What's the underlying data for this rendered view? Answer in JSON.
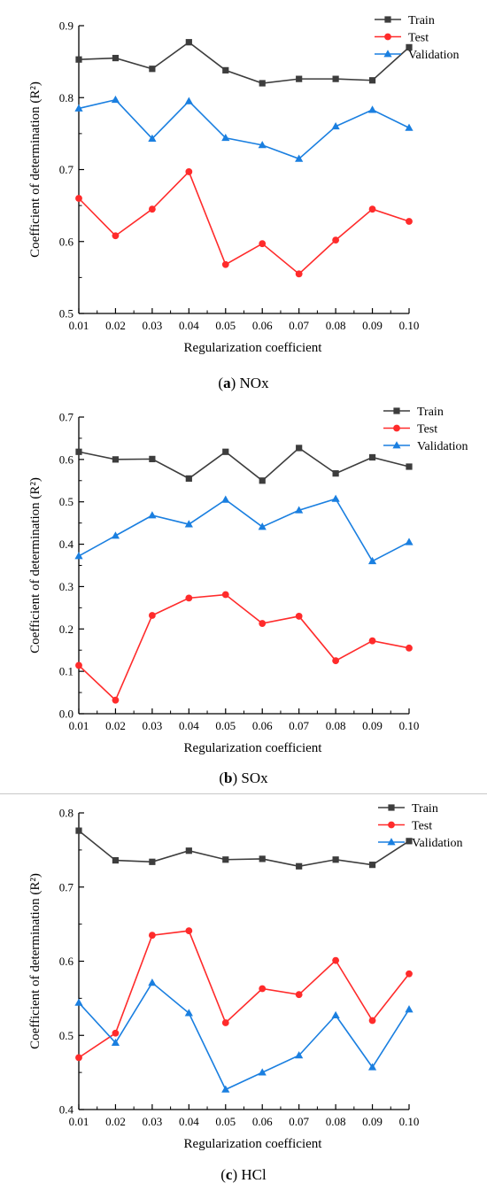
{
  "colors": {
    "Train": "#3d3d3d",
    "Test": "#ff2b2b",
    "Validation": "#1a7fe0"
  },
  "markers": {
    "Train": "square",
    "Test": "circle",
    "Validation": "triangle"
  },
  "chart_data": [
    {
      "type": "line",
      "caption_letter": "a",
      "caption_text": "NOx",
      "xlabel": "Regularization coefficient",
      "ylabel": "Coefficient of determination (R²)",
      "x": [
        0.01,
        0.02,
        0.03,
        0.04,
        0.05,
        0.06,
        0.07,
        0.08,
        0.09,
        0.1
      ],
      "x_tick_labels": [
        "0.01",
        "0.02",
        "0.03",
        "0.04",
        "0.05",
        "0.06",
        "0.07",
        "0.08",
        "0.09",
        "0.10"
      ],
      "ylim": [
        0.5,
        0.9
      ],
      "y_ticks": [
        0.5,
        0.6,
        0.7,
        0.8,
        0.9
      ],
      "y_tick_labels": [
        "0.5",
        "0.6",
        "0.7",
        "0.8",
        "0.9"
      ],
      "legend_position": "top-right",
      "series": [
        {
          "name": "Train",
          "values": [
            0.853,
            0.855,
            0.84,
            0.877,
            0.838,
            0.82,
            0.826,
            0.826,
            0.824,
            0.87
          ]
        },
        {
          "name": "Test",
          "values": [
            0.66,
            0.608,
            0.645,
            0.697,
            0.568,
            0.597,
            0.555,
            0.602,
            0.645,
            0.628
          ]
        },
        {
          "name": "Validation",
          "values": [
            0.785,
            0.797,
            0.743,
            0.795,
            0.744,
            0.734,
            0.715,
            0.76,
            0.783,
            0.758
          ]
        }
      ]
    },
    {
      "type": "line",
      "caption_letter": "b",
      "caption_text": "SOx",
      "xlabel": "Regularization coefficient",
      "ylabel": "Coefficient of determination (R²)",
      "x": [
        0.01,
        0.02,
        0.03,
        0.04,
        0.05,
        0.06,
        0.07,
        0.08,
        0.09,
        0.1
      ],
      "x_tick_labels": [
        "0.01",
        "0.02",
        "0.03",
        "0.04",
        "0.05",
        "0.06",
        "0.07",
        "0.08",
        "0.09",
        "0.10"
      ],
      "ylim": [
        0.0,
        0.7
      ],
      "y_ticks": [
        0.0,
        0.1,
        0.2,
        0.3,
        0.4,
        0.5,
        0.6,
        0.7
      ],
      "y_tick_labels": [
        "0.0",
        "0.1",
        "0.2",
        "0.3",
        "0.4",
        "0.5",
        "0.6",
        "0.7"
      ],
      "legend_position": "top-right",
      "series": [
        {
          "name": "Train",
          "values": [
            0.618,
            0.6,
            0.601,
            0.555,
            0.618,
            0.55,
            0.627,
            0.567,
            0.605,
            0.583
          ]
        },
        {
          "name": "Test",
          "values": [
            0.114,
            0.032,
            0.232,
            0.273,
            0.281,
            0.213,
            0.23,
            0.125,
            0.172,
            0.155
          ]
        },
        {
          "name": "Validation",
          "values": [
            0.372,
            0.42,
            0.468,
            0.447,
            0.505,
            0.441,
            0.48,
            0.507,
            0.36,
            0.405
          ]
        }
      ]
    },
    {
      "type": "line",
      "caption_letter": "c",
      "caption_text": "HCl",
      "xlabel": "Regularization coefficient",
      "ylabel": "Coefficient of determination (R²)",
      "x": [
        0.01,
        0.02,
        0.03,
        0.04,
        0.05,
        0.06,
        0.07,
        0.08,
        0.09,
        0.1
      ],
      "x_tick_labels": [
        "0.01",
        "0.02",
        "0.03",
        "0.04",
        "0.05",
        "0.06",
        "0.07",
        "0.08",
        "0.09",
        "0.10"
      ],
      "ylim": [
        0.4,
        0.8
      ],
      "y_ticks": [
        0.4,
        0.5,
        0.6,
        0.7,
        0.8
      ],
      "y_tick_labels": [
        "0.4",
        "0.5",
        "0.6",
        "0.7",
        "0.8"
      ],
      "legend_position": "top-right",
      "series": [
        {
          "name": "Train",
          "values": [
            0.776,
            0.736,
            0.734,
            0.749,
            0.737,
            0.738,
            0.728,
            0.737,
            0.73,
            0.762
          ]
        },
        {
          "name": "Test",
          "values": [
            0.47,
            0.503,
            0.635,
            0.641,
            0.517,
            0.563,
            0.555,
            0.601,
            0.52,
            0.583
          ]
        },
        {
          "name": "Validation",
          "values": [
            0.544,
            0.49,
            0.571,
            0.53,
            0.427,
            0.45,
            0.473,
            0.527,
            0.457,
            0.535
          ]
        }
      ]
    }
  ]
}
